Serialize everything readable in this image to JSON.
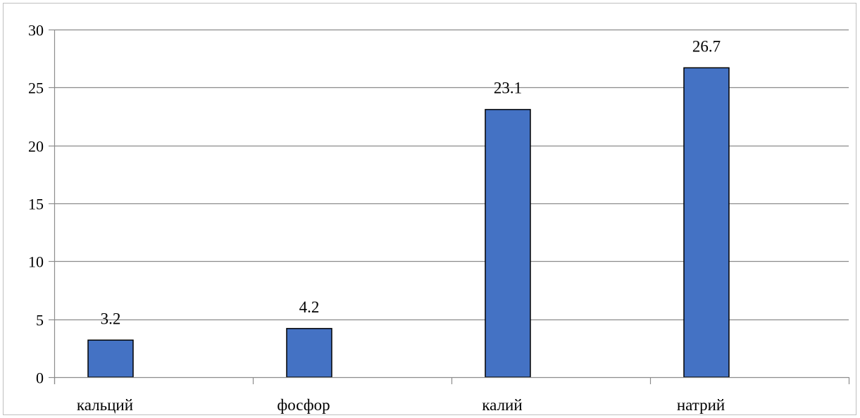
{
  "chart_data": {
    "type": "bar",
    "title": "",
    "xlabel": "",
    "ylabel": "",
    "categories": [
      "кальций",
      "фосфор",
      "калий",
      "натрий"
    ],
    "values": [
      3.2,
      4.2,
      23.1,
      26.7
    ],
    "value_labels": [
      "3.2",
      "4.2",
      "23.1",
      "26.7"
    ],
    "ylim": [
      0,
      30
    ],
    "yticks": [
      0,
      5,
      10,
      15,
      20,
      25,
      30
    ],
    "ytick_labels": [
      "0",
      "5",
      "10",
      "15",
      "20",
      "25",
      "30"
    ],
    "grid": true,
    "legend": "none",
    "colors": {
      "bar_fill": "#4472c4",
      "bar_stroke": "#000000",
      "grid": "#8c8c8c",
      "axis": "#8c8c8c"
    }
  }
}
